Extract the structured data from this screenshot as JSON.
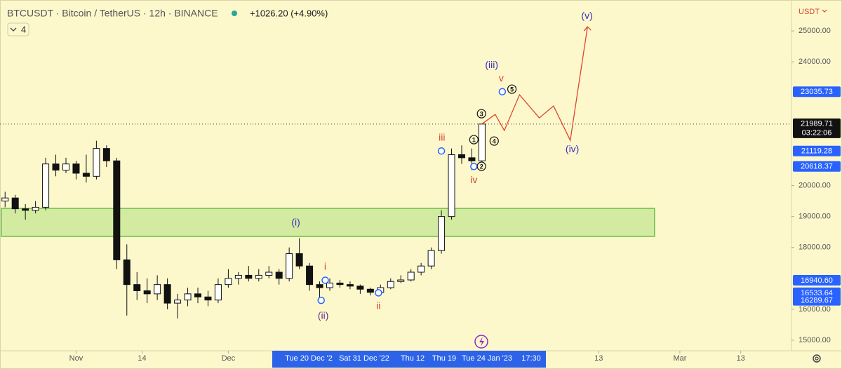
{
  "chart_data": {
    "type": "candlestick",
    "title": "BTCUSDT · Bitcoin / TetherUS · 12h · BINANCE",
    "change": "+1026.20 (+4.90%)",
    "indicator_count": "4",
    "currency": "USDT",
    "x": [
      -14,
      -12,
      -10,
      -8,
      -6,
      -4,
      -2,
      0,
      2,
      4,
      6,
      8,
      10,
      12,
      14,
      16,
      18,
      20,
      22,
      24,
      26,
      28,
      30,
      32,
      34,
      36,
      38,
      40,
      42,
      44,
      46,
      48,
      50,
      52,
      54,
      56,
      58,
      60,
      62,
      64,
      66,
      68,
      70,
      72,
      74,
      76,
      78,
      80
    ],
    "open": [
      19500,
      19600,
      19250,
      19200,
      19300,
      20700,
      20500,
      20700,
      20400,
      20300,
      21200,
      20800,
      17600,
      16800,
      16600,
      16500,
      16800,
      16200,
      16300,
      16500,
      16400,
      16300,
      16800,
      17000,
      17100,
      17000,
      17100,
      17200,
      17000,
      17800,
      17400,
      16800,
      16700,
      16850,
      16800,
      16750,
      16650,
      16550,
      16700,
      16900,
      16950,
      17200,
      17400,
      17900,
      19000,
      21000,
      20900,
      20800
    ],
    "high": [
      19800,
      19700,
      19400,
      19500,
      20900,
      21000,
      20900,
      20800,
      21000,
      21450,
      21300,
      20900,
      18100,
      17200,
      17000,
      17100,
      17000,
      16500,
      16700,
      16700,
      16600,
      17000,
      17300,
      17200,
      17400,
      17300,
      17400,
      17300,
      18000,
      18300,
      17500,
      16900,
      17000,
      16950,
      16900,
      16800,
      16700,
      16800,
      17000,
      17100,
      17300,
      17500,
      18000,
      19200,
      21200,
      21300,
      21200,
      22000
    ],
    "low": [
      19300,
      19100,
      18900,
      19100,
      19200,
      20300,
      20400,
      20200,
      20100,
      20200,
      20600,
      17300,
      15800,
      16300,
      16200,
      16300,
      16000,
      15700,
      16100,
      16200,
      16100,
      16200,
      16700,
      16800,
      16900,
      16900,
      17000,
      16800,
      16900,
      17300,
      16600,
      16300,
      16600,
      16700,
      16650,
      16500,
      16450,
      16500,
      16650,
      16850,
      16900,
      17100,
      17300,
      17800,
      18900,
      20700,
      20500,
      20700
    ],
    "close": [
      19600,
      19250,
      19200,
      19300,
      20700,
      20500,
      20700,
      20400,
      20300,
      21200,
      20800,
      17600,
      16800,
      16600,
      16500,
      16800,
      16200,
      16300,
      16500,
      16400,
      16300,
      16800,
      17000,
      17100,
      17000,
      17100,
      17200,
      17000,
      17800,
      17400,
      16800,
      16700,
      16850,
      16800,
      16750,
      16650,
      16550,
      16700,
      16900,
      16950,
      17200,
      17400,
      17900,
      19000,
      21000,
      20900,
      20800,
      21989.71
    ],
    "up_color": "#ffffff",
    "down_color": "#111111",
    "outline_color": "#111111",
    "xlim": [
      -15,
      141
    ],
    "xticks": [
      {
        "value": 0,
        "label": "Nov"
      },
      {
        "value": 13,
        "label": "14"
      },
      {
        "value": 30,
        "label": "Dec"
      },
      {
        "value": 103,
        "label": "13"
      },
      {
        "value": 119,
        "label": "Mar"
      },
      {
        "value": 131,
        "label": "13"
      }
    ],
    "ylim": [
      14660,
      26000
    ],
    "yticks": [
      {
        "value": 15000,
        "label": "15000.00"
      },
      {
        "value": 16000,
        "label": "16000.00"
      },
      {
        "value": 18000,
        "label": "18000.00"
      },
      {
        "value": 19000,
        "label": "19000.00"
      },
      {
        "value": 20000,
        "label": "20000.00"
      },
      {
        "value": 24000,
        "label": "24000.00"
      },
      {
        "value": 25000,
        "label": "25000.00"
      }
    ],
    "last_price": {
      "value": 21989.71,
      "countdown": "03:22:06"
    },
    "price_badges": [
      {
        "value": 23035.73,
        "x": 84
      },
      {
        "value": 21119.28,
        "x": 72
      },
      {
        "value": 20618.37,
        "x": 78.4
      },
      {
        "value": 16940.6,
        "label": "16940.60",
        "x": 49.1
      },
      {
        "value": 16533.64,
        "x": 59.6
      },
      {
        "value": 16289.67,
        "x": 48.3
      }
    ],
    "badge_color": "#2962ff",
    "zone": {
      "low": 18356,
      "high": 19263,
      "x_end": 114,
      "color": "#d3eba0",
      "border": "#6cc04a"
    },
    "projection": {
      "x": [
        79.9,
        82.6,
        84.4,
        87.4,
        91.3,
        94.1,
        97.4,
        100.8
      ],
      "y": [
        21984,
        22302,
        21780,
        22937,
        22188,
        22574,
        21463,
        25136
      ],
      "color": "#e0452f"
    },
    "waves": [
      {
        "label": "(i)",
        "x": 43.3,
        "y": 18787,
        "color": "#3b2fbf"
      },
      {
        "label": "(ii)",
        "x": 48.7,
        "y": 15771,
        "color": "#6a2a8f"
      },
      {
        "label": "(iii)",
        "x": 81.9,
        "y": 23889,
        "color": "#3b2fbf"
      },
      {
        "label": "(iv)",
        "x": 97.8,
        "y": 21168,
        "color": "#3b2fbf"
      },
      {
        "label": "(v)",
        "x": 100.7,
        "y": 25476,
        "color": "#3b2fbf"
      },
      {
        "label": "i",
        "x": 49.1,
        "y": 17358,
        "color": "#d9412b"
      },
      {
        "label": "ii",
        "x": 59.6,
        "y": 16088,
        "color": "#d9412b"
      },
      {
        "label": "iii",
        "x": 72.1,
        "y": 21531,
        "color": "#d9412b"
      },
      {
        "label": "iv",
        "x": 78.4,
        "y": 20170,
        "color": "#d9412b"
      },
      {
        "label": "v",
        "x": 83.8,
        "y": 23458,
        "color": "#d9412b"
      }
    ],
    "points": [
      {
        "label": "1",
        "x": 78.4,
        "y": 21485
      },
      {
        "label": "2",
        "x": 79.9,
        "y": 20624
      },
      {
        "label": "3",
        "x": 79.9,
        "y": 22324
      },
      {
        "label": "4",
        "x": 82.4,
        "y": 21440
      },
      {
        "label": "5",
        "x": 85.9,
        "y": 23118
      }
    ],
    "time_range": [
      "Tue 20 Dec '2",
      "Sat 31 Dec '22",
      "Thu 12",
      "Thu 19",
      "Tue 24 Jan '23",
      "17:30"
    ]
  }
}
